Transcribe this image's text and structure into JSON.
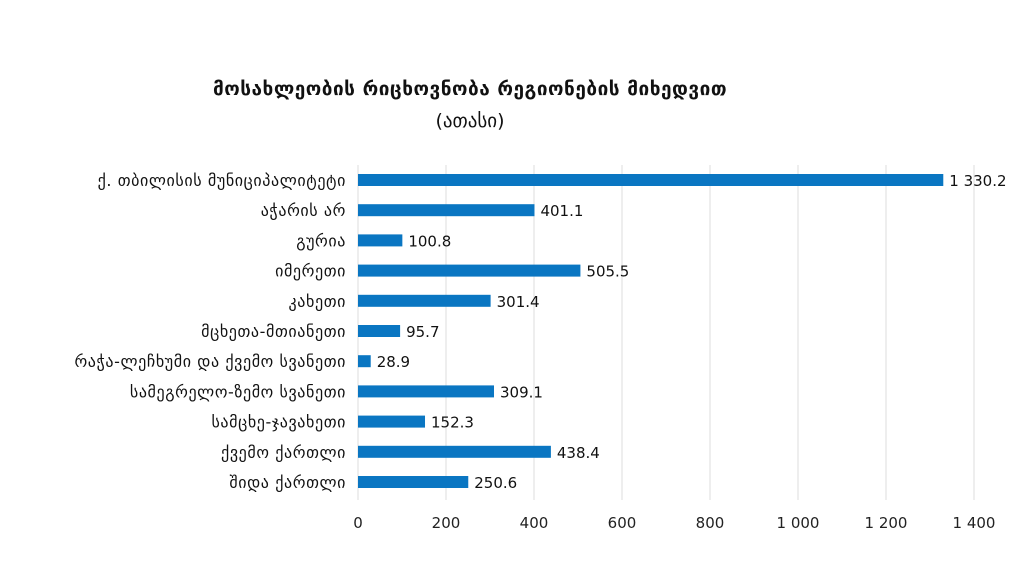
{
  "chart_data": {
    "type": "bar",
    "orientation": "horizontal",
    "title": "მოსახლეობის რიცხოვნობა რეგიონების მიხედვით",
    "subtitle": "(ათასი)",
    "categories": [
      "ქ. თბილისის მუნიციპალიტეტი",
      "აჭარის არ",
      "გურია",
      "იმერეთი",
      "კახეთი",
      "მცხეთა-მთიანეთი",
      "რაჭა-ლეჩხუმი და ქვემო სვანეთი",
      "სამეგრელო-ზემო სვანეთი",
      "სამცხე-ჯავახეთი",
      "ქვემო ქართლი",
      "შიდა ქართლი"
    ],
    "values": [
      1330.2,
      401.1,
      100.8,
      505.5,
      301.4,
      95.7,
      28.9,
      309.1,
      152.3,
      438.4,
      250.6
    ],
    "value_labels": [
      "1 330.2",
      "401.1",
      "100.8",
      "505.5",
      "301.4",
      "95.7",
      "28.9",
      "309.1",
      "152.3",
      "438.4",
      "250.6"
    ],
    "xticks": [
      0,
      200,
      400,
      600,
      800,
      1000,
      1200,
      1400
    ],
    "xtick_labels": [
      "0",
      "200",
      "400",
      "600",
      "800",
      "1 000",
      "1 200",
      "1 400"
    ],
    "xlim": [
      0,
      1400
    ],
    "grid": true,
    "bar_color": "#0a76c2"
  }
}
